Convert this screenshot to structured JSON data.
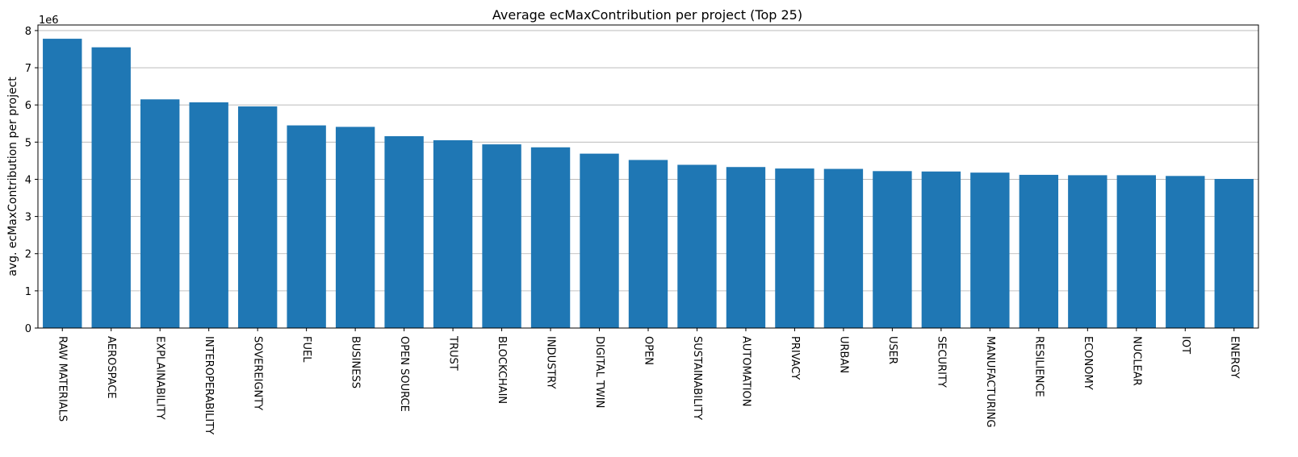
{
  "chart_data": {
    "type": "bar",
    "title": "Average ecMaxContribution per project (Top 25)",
    "xlabel": "",
    "ylabel": "avg. ecMaxContribution per project",
    "y_offset_label": "1e6",
    "ylim": [
      0,
      8.15
    ],
    "yticks": [
      0,
      1,
      2,
      3,
      4,
      5,
      6,
      7,
      8
    ],
    "grid": "y",
    "bar_color": "#1f77b4",
    "categories": [
      "RAW MATERIALS",
      "AEROSPACE",
      "EXPLAINABILITY",
      "INTEROPERABILITY",
      "SOVEREIGNTY",
      "FUEL",
      "BUSINESS",
      "OPEN SOURCE",
      "TRUST",
      "BLOCKCHAIN",
      "INDUSTRY",
      "DIGITAL TWIN",
      "OPEN",
      "SUSTAINABILITY",
      "AUTOMATION",
      "PRIVACY",
      "URBAN",
      "USER",
      "SECURITY",
      "MANUFACTURING",
      "RESILIENCE",
      "ECONOMY",
      "NUCLEAR",
      "IOT",
      "ENERGY"
    ],
    "values": [
      7.78,
      7.55,
      6.15,
      6.07,
      5.96,
      5.45,
      5.41,
      5.16,
      5.05,
      4.94,
      4.86,
      4.69,
      4.52,
      4.39,
      4.33,
      4.29,
      4.28,
      4.22,
      4.21,
      4.18,
      4.12,
      4.11,
      4.11,
      4.09,
      4.01
    ]
  }
}
